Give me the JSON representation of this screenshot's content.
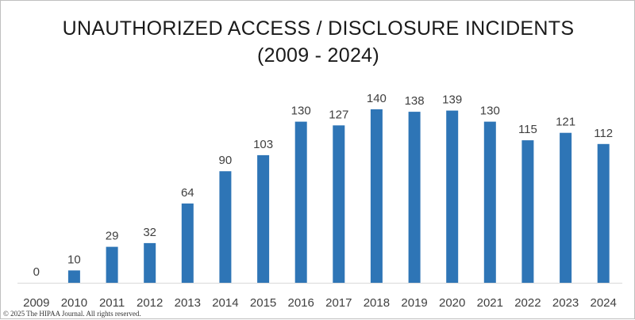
{
  "chart_data": {
    "type": "bar",
    "title": "UNAUTHORIZED ACCESS / DISCLOSURE INCIDENTS",
    "subtitle": "(2009 - 2024)",
    "categories": [
      "2009",
      "2010",
      "2011",
      "2012",
      "2013",
      "2014",
      "2015",
      "2016",
      "2017",
      "2018",
      "2019",
      "2020",
      "2021",
      "2022",
      "2023",
      "2024"
    ],
    "values": [
      0,
      10,
      29,
      32,
      64,
      90,
      103,
      130,
      127,
      140,
      138,
      139,
      130,
      115,
      121,
      112
    ],
    "ylim": [
      0,
      150
    ],
    "grid": false,
    "data_labels": true,
    "bar_color": "#2e75b6"
  },
  "footer": {
    "copyright": "© 2025 The HIPAA Journal. All rights reserved."
  }
}
